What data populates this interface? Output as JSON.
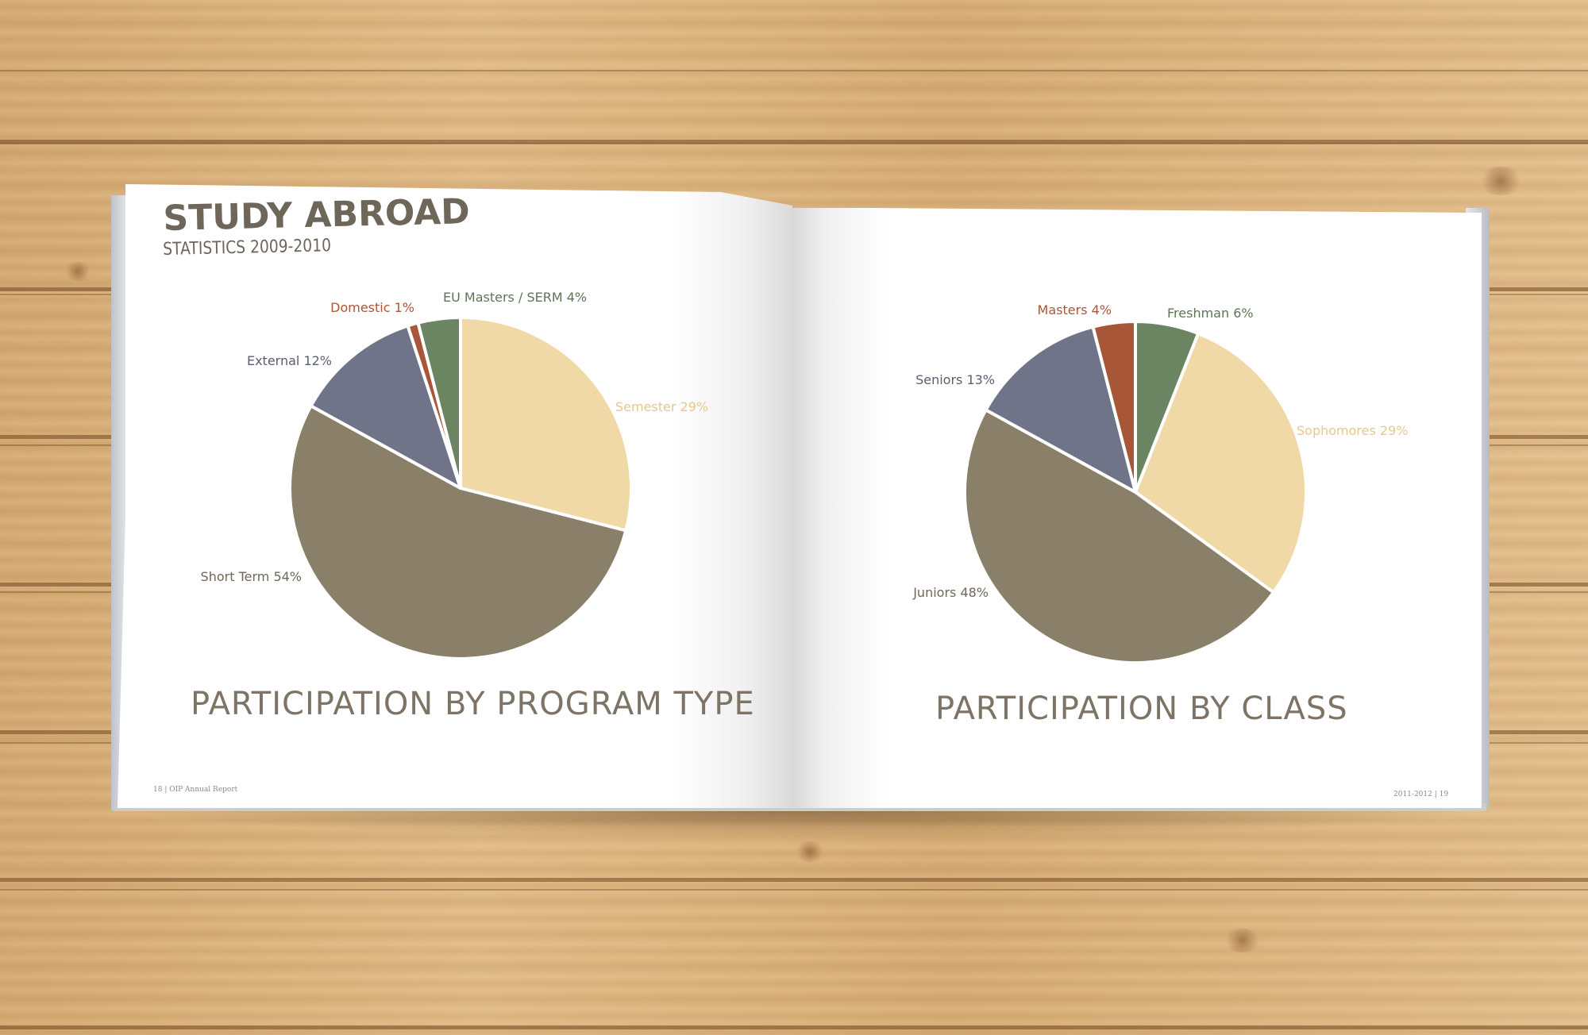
{
  "header": {
    "title": "STUDY ABROAD",
    "subtitle": "STATISTICS 2009-2010"
  },
  "footer": {
    "left": "18 | OIP Annual Report",
    "right": "2011-2012 | 19"
  },
  "colors": {
    "tan": "#f0d9a6",
    "taupe": "#8a8069",
    "slate": "#6f7489",
    "rust": "#a85638",
    "sage": "#6b8462"
  },
  "chart_data": [
    {
      "type": "pie",
      "title": "PARTICIPATION BY PROGRAM TYPE",
      "slices": [
        {
          "label": "Semester 29%",
          "value": 29,
          "color": "#f0d9a6",
          "label_color": "#e3c98f"
        },
        {
          "label": "Short Term 54%",
          "value": 54,
          "color": "#8a8069",
          "label_color": "#6f6757"
        },
        {
          "label": "External 12%",
          "value": 12,
          "color": "#6f7489",
          "label_color": "#5a5f70"
        },
        {
          "label": "Domestic 1%",
          "value": 1,
          "color": "#a85638",
          "label_color": "#a85638"
        },
        {
          "label": "EU Masters / SERM 4%",
          "value": 4,
          "color": "#6b8462",
          "label_color": "#5e7457"
        }
      ]
    },
    {
      "type": "pie",
      "title": "PARTICIPATION BY CLASS",
      "slices": [
        {
          "label": "Freshman 6%",
          "value": 6,
          "color": "#6b8462",
          "label_color": "#5e7457"
        },
        {
          "label": "Sophomores 29%",
          "value": 29,
          "color": "#f0d9a6",
          "label_color": "#e3c98f"
        },
        {
          "label": "Juniors 48%",
          "value": 48,
          "color": "#8a8069",
          "label_color": "#6f6757"
        },
        {
          "label": "Seniors 13%",
          "value": 13,
          "color": "#6f7489",
          "label_color": "#5a5f70"
        },
        {
          "label": "Masters 4%",
          "value": 4,
          "color": "#a85638",
          "label_color": "#a85638"
        }
      ]
    }
  ]
}
